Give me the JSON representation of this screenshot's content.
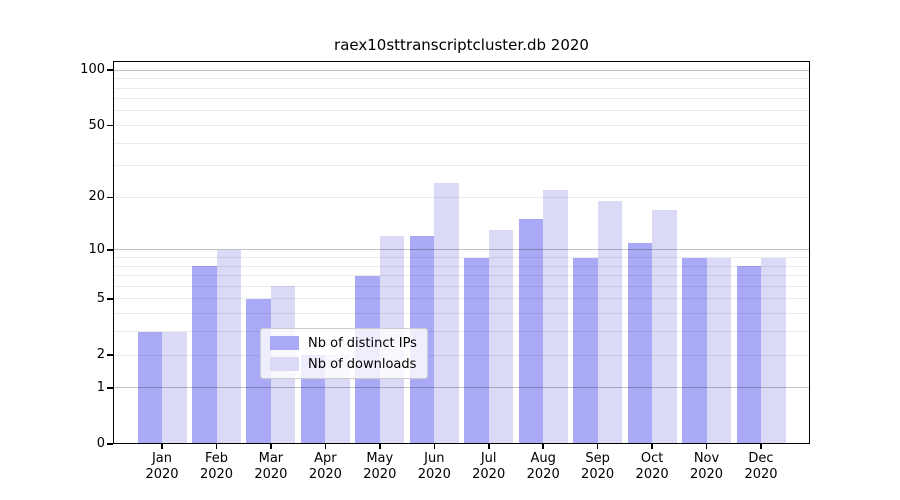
{
  "title": "raex10sttranscriptcluster.db 2020",
  "chart_data": {
    "type": "bar",
    "categories": [
      "Jan",
      "Feb",
      "Mar",
      "Apr",
      "May",
      "Jun",
      "Jul",
      "Aug",
      "Sep",
      "Oct",
      "Nov",
      "Dec"
    ],
    "year": "2020",
    "series": [
      {
        "name": "Nb of distinct IPs",
        "color": "#a9a9f5",
        "values": [
          3,
          8,
          5,
          2,
          7,
          12,
          9,
          15,
          9,
          11,
          9,
          8
        ]
      },
      {
        "name": "Nb of downloads",
        "color": "#dadaf7",
        "values": [
          3,
          10,
          6,
          2,
          12,
          24,
          13,
          22,
          19,
          17,
          9,
          9
        ]
      }
    ],
    "yscale": "log1p",
    "ylim": [
      0,
      112
    ],
    "yticks": [
      0,
      1,
      2,
      5,
      10,
      20,
      50,
      100
    ],
    "grid_major": [
      1,
      10,
      100
    ],
    "grid_minor": [
      2,
      3,
      4,
      5,
      6,
      7,
      8,
      9,
      20,
      30,
      40,
      50,
      60,
      70,
      80,
      90
    ],
    "bar_width_units": 0.45,
    "legend": {
      "position": "lower center"
    },
    "xlabel": "",
    "ylabel": ""
  },
  "colors": {
    "background": "#ffffff",
    "spine": "#000000",
    "grid_major": "rgba(0,0,0,0.24)",
    "grid_minor": "rgba(0,0,0,0.08)",
    "text": "#000000",
    "legend_border": "#cccccc",
    "legend_bg": "rgba(255,255,255,0.8)"
  }
}
